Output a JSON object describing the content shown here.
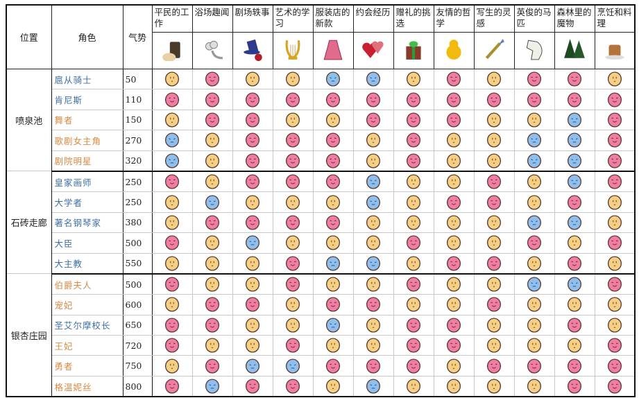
{
  "headers": {
    "location": "位置",
    "character": "角色",
    "power": "气势"
  },
  "topics": [
    {
      "label": "平民的工作",
      "icon": "bucket-bread-icon"
    },
    {
      "label": "浴场趣闻",
      "icon": "cloud-pipe-icon"
    },
    {
      "label": "剧场轶事",
      "icon": "top-hat-rose-icon"
    },
    {
      "label": "艺术的学习",
      "icon": "lyre-icon"
    },
    {
      "label": "服装店的新款",
      "icon": "dress-icon"
    },
    {
      "label": "约会经历",
      "icon": "hearts-icon"
    },
    {
      "label": "赠礼的挑选",
      "icon": "gift-box-icon"
    },
    {
      "label": "友情的哲学",
      "icon": "chick-icon"
    },
    {
      "label": "写生的灵感",
      "icon": "paintbrush-icon"
    },
    {
      "label": "英俊的马匹",
      "icon": "horse-icon"
    },
    {
      "label": "森林里的魔物",
      "icon": "pine-trees-icon"
    },
    {
      "label": "烹饪和料理",
      "icon": "cake-icon"
    }
  ],
  "face_colors": {
    "P": "#f07ea3",
    "Y": "#f5cf83",
    "B": "#8fbfee"
  },
  "face_meaning": {
    "P": "happy",
    "Y": "neutral",
    "B": "sad"
  },
  "name_colors": {
    "blue": "#3d6fa3",
    "orange": "#d88a44"
  },
  "groups": [
    {
      "location": "喷泉池",
      "rows": [
        {
          "name": "扈从骑士",
          "color": "blue",
          "power": "50",
          "faces": "YPYYBBYPYPPY"
        },
        {
          "name": "肯尼斯",
          "color": "blue",
          "power": "110",
          "faces": "PPPPPPPPPPPP"
        },
        {
          "name": "舞者",
          "color": "orange",
          "power": "150",
          "faces": "YPPYYPPPYYBP"
        },
        {
          "name": "歌剧女主角",
          "color": "orange",
          "power": "270",
          "faces": "BYPPPYPYYBBP"
        },
        {
          "name": "剧院明星",
          "color": "orange",
          "power": "320",
          "faces": "BYPPPYPYYBBP"
        }
      ]
    },
    {
      "location": "石砖走廊",
      "rows": [
        {
          "name": "皇家画师",
          "color": "blue",
          "power": "250",
          "faces": "PYPPPBYYPYBP"
        },
        {
          "name": "大学者",
          "color": "blue",
          "power": "250",
          "faces": "YBYYYBYPPYPY"
        },
        {
          "name": "著名钢琴家",
          "color": "blue",
          "power": "380",
          "faces": "YPPPPYYYYBBY"
        },
        {
          "name": "大臣",
          "color": "blue",
          "power": "500",
          "faces": "PYBYYYPYYPYP"
        },
        {
          "name": "大主教",
          "color": "blue",
          "power": "550",
          "faces": "YYYPBBYPPYPY"
        }
      ]
    },
    {
      "location": "银杏庄园",
      "rows": [
        {
          "name": "伯爵夫人",
          "color": "orange",
          "power": "500",
          "faces": "PYYPYYPYYBBP"
        },
        {
          "name": "宠妃",
          "color": "orange",
          "power": "600",
          "faces": "YPPYPPYYPYYY"
        },
        {
          "name": "圣艾尔摩校长",
          "color": "blue",
          "power": "650",
          "faces": "PPYYBYPPYYPY"
        },
        {
          "name": "王妃",
          "color": "orange",
          "power": "720",
          "faces": "PYYPYYPPYYYP"
        },
        {
          "name": "勇者",
          "color": "orange",
          "power": "750",
          "faces": "YPBBPPPYPPPP"
        },
        {
          "name": "格温妮丝",
          "color": "orange",
          "power": "800",
          "faces": "PBPPYBYYYYPP"
        }
      ]
    }
  ]
}
